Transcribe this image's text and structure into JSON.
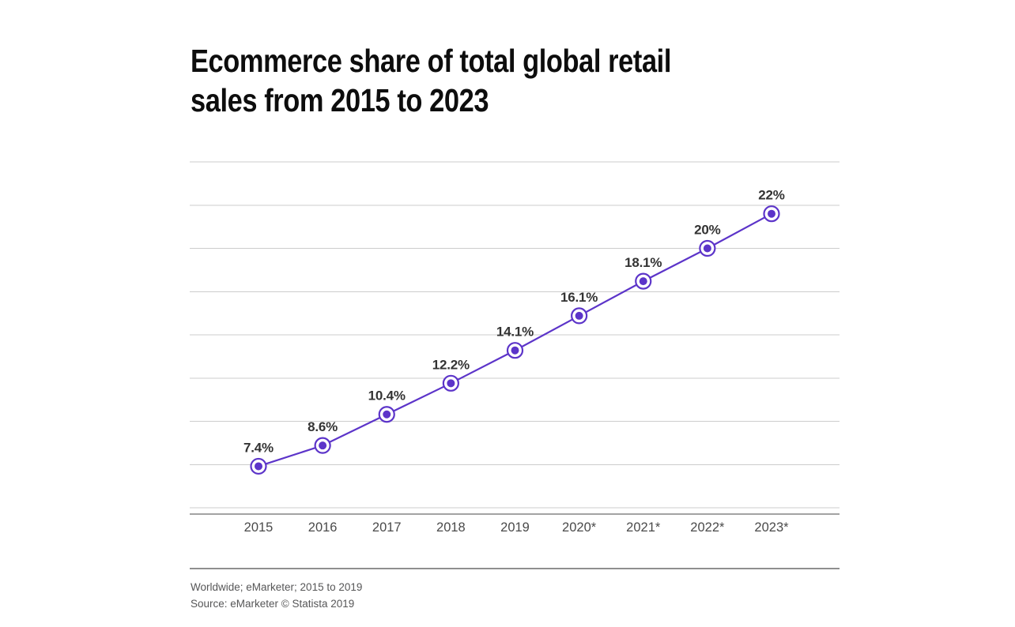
{
  "page": {
    "background": "#ffffff"
  },
  "header": {
    "title_line1": "Ecommerce share of total global retail",
    "title_line2": "sales from 2015 to 2023"
  },
  "chart_data": {
    "type": "line",
    "title": "Ecommerce share of total global retail sales from 2015 to 2023",
    "categories": [
      "2015",
      "2016",
      "2017",
      "2018",
      "2019",
      "2020*",
      "2021*",
      "2022*",
      "2023*"
    ],
    "series": [
      {
        "name": "Ecommerce share of total global retail sales (%)",
        "values": [
          7.4,
          8.6,
          10.4,
          12.2,
          14.1,
          16.1,
          18.1,
          20,
          22
        ]
      }
    ],
    "data_labels": [
      "7.4%",
      "8.6%",
      "10.4%",
      "12.2%",
      "14.1%",
      "16.1%",
      "18.1%",
      "20%",
      "22%"
    ],
    "unit": "%",
    "xlabel": "",
    "ylabel": "",
    "ylim": [
      5,
      25
    ],
    "gridline_step": 2.5,
    "grid": true,
    "legend": false,
    "colors": {
      "line": "#5c34c9",
      "marker_fill": "#5c34c9",
      "marker_ring_fill": "#ffffff",
      "gridline": "#cccccc",
      "axis_line": "#a3a3a3",
      "data_label": "#333333",
      "tick_label": "#4a4a4a"
    }
  },
  "footer": {
    "note": "Worldwide; eMarketer; 2015 to 2019",
    "source": "Source: eMarketer © Statista 2019",
    "divider_color": "#8f8f8f"
  }
}
